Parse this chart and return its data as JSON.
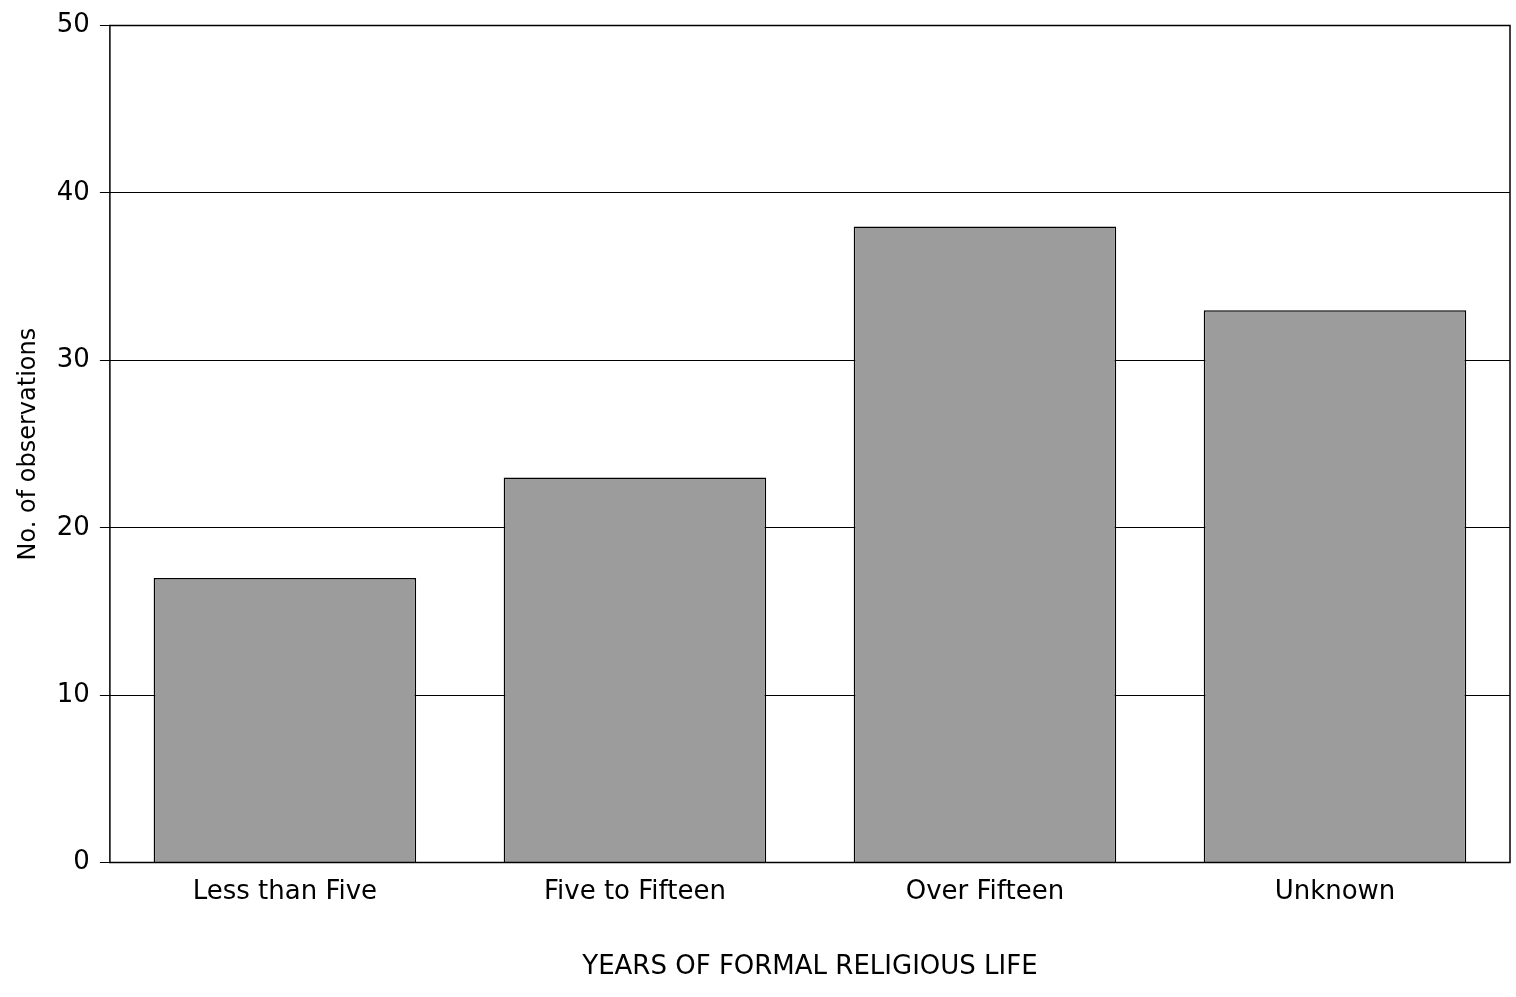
{
  "chart_data": {
    "type": "bar",
    "xlabel": "YEARS OF FORMAL RELIGIOUS LIFE",
    "ylabel": "No. of observations",
    "categories": [
      "Less than Five",
      "Five to Fifteen",
      "Over Fifteen",
      "Unknown"
    ],
    "values": [
      17,
      23,
      38,
      33
    ],
    "color": "#9c9c9c",
    "ylim": [
      0,
      50
    ],
    "yticks": [
      0,
      10,
      20,
      30,
      40,
      50
    ],
    "grid": "y",
    "legend": false
  }
}
